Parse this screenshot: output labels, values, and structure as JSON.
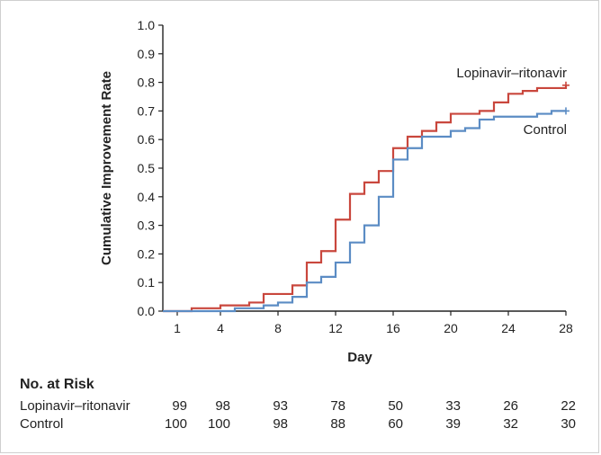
{
  "chart_data": {
    "type": "line",
    "step": true,
    "xlabel": "Day",
    "ylabel": "Cumulative Improvement Rate",
    "xlim": [
      0,
      28
    ],
    "ylim": [
      0,
      1.0
    ],
    "x_ticks": [
      1,
      4,
      8,
      12,
      16,
      20,
      24,
      28
    ],
    "y_ticks": [
      0.0,
      0.1,
      0.2,
      0.3,
      0.4,
      0.5,
      0.6,
      0.7,
      0.8,
      0.9,
      1.0
    ],
    "y_tick_labels": [
      "0.0",
      "0.1",
      "0.2",
      "0.3",
      "0.4",
      "0.5",
      "0.6",
      "0.7",
      "0.8",
      "0.9",
      "1.0"
    ],
    "grid": false,
    "series": [
      {
        "name": "Lopinavir–ritonavir",
        "color": "#c9473d",
        "censored_marker_at": [
          28,
          0.79
        ],
        "points": [
          [
            0,
            0
          ],
          [
            2,
            0.01
          ],
          [
            4,
            0.02
          ],
          [
            6,
            0.03
          ],
          [
            7,
            0.06
          ],
          [
            9,
            0.09
          ],
          [
            10,
            0.17
          ],
          [
            11,
            0.21
          ],
          [
            12,
            0.32
          ],
          [
            13,
            0.41
          ],
          [
            14,
            0.45
          ],
          [
            15,
            0.49
          ],
          [
            16,
            0.57
          ],
          [
            17,
            0.61
          ],
          [
            18,
            0.63
          ],
          [
            19,
            0.66
          ],
          [
            20,
            0.69
          ],
          [
            22,
            0.7
          ],
          [
            23,
            0.73
          ],
          [
            24,
            0.76
          ],
          [
            25,
            0.77
          ],
          [
            26,
            0.78
          ],
          [
            28,
            0.79
          ]
        ]
      },
      {
        "name": "Control",
        "color": "#5b8cc4",
        "censored_marker_at": [
          28,
          0.7
        ],
        "points": [
          [
            0,
            0
          ],
          [
            5,
            0.01
          ],
          [
            7,
            0.02
          ],
          [
            8,
            0.03
          ],
          [
            9,
            0.05
          ],
          [
            10,
            0.1
          ],
          [
            11,
            0.12
          ],
          [
            12,
            0.17
          ],
          [
            13,
            0.24
          ],
          [
            14,
            0.3
          ],
          [
            15,
            0.4
          ],
          [
            16,
            0.53
          ],
          [
            17,
            0.57
          ],
          [
            18,
            0.61
          ],
          [
            20,
            0.63
          ],
          [
            21,
            0.64
          ],
          [
            22,
            0.67
          ],
          [
            23,
            0.68
          ],
          [
            26,
            0.69
          ],
          [
            27,
            0.7
          ],
          [
            28,
            0.7
          ]
        ]
      }
    ]
  },
  "risk_table": {
    "title": "No. at Risk",
    "days": [
      1,
      4,
      8,
      12,
      16,
      20,
      24,
      28
    ],
    "rows": [
      {
        "name": "Lopinavir–ritonavir",
        "values": [
          "99",
          "98",
          "93",
          "78",
          "50",
          "33",
          "26",
          "22"
        ]
      },
      {
        "name": "Control",
        "values": [
          "100",
          "100",
          "98",
          "88",
          "60",
          "39",
          "32",
          "30"
        ]
      }
    ]
  }
}
